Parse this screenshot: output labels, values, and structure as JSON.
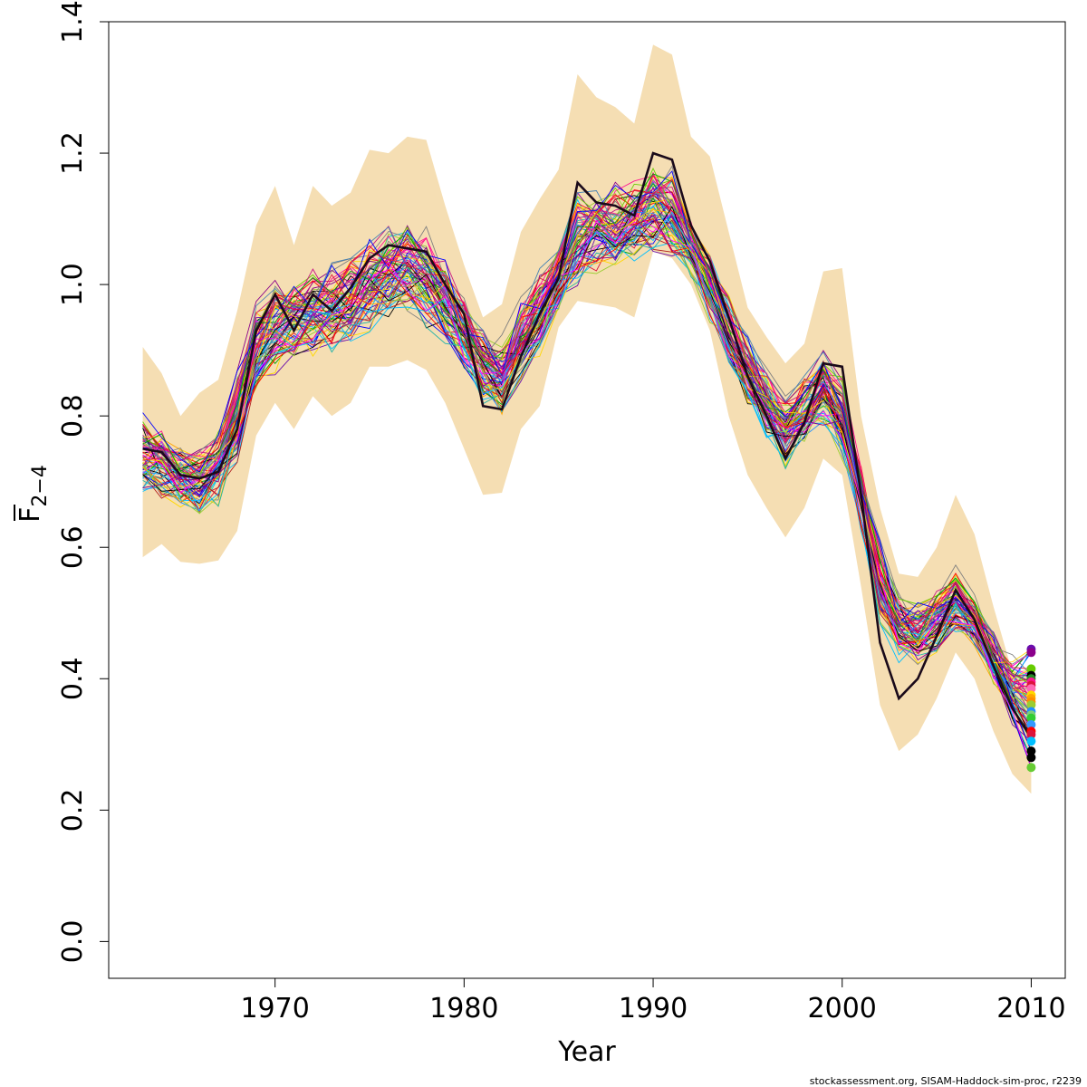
{
  "chart_data": {
    "type": "line",
    "title": "",
    "xlabel": "Year",
    "ylabel": "F",
    "ylabel_subscript": "2−4",
    "xlim": [
      1961.2,
      2011.8
    ],
    "ylim": [
      -0.056,
      1.4
    ],
    "x_ticks": [
      1970,
      1980,
      1990,
      2000,
      2010
    ],
    "y_ticks": [
      0.0,
      0.2,
      0.4,
      0.6,
      0.8,
      1.0,
      1.2,
      1.4
    ],
    "x_tick_labels": [
      "1970",
      "1980",
      "1990",
      "2000",
      "2010"
    ],
    "y_tick_labels": [
      "0.0",
      "0.2",
      "0.4",
      "0.6",
      "0.8",
      "1.0",
      "1.2",
      "1.4"
    ],
    "grid": false,
    "band": {
      "color": "#F5DEB3",
      "x": [
        1963,
        1964,
        1965,
        1966,
        1967,
        1968,
        1969,
        1970,
        1971,
        1972,
        1973,
        1974,
        1975,
        1976,
        1977,
        1978,
        1979,
        1980,
        1981,
        1982,
        1983,
        1984,
        1985,
        1986,
        1987,
        1988,
        1989,
        1990,
        1991,
        1992,
        1993,
        1994,
        1995,
        1996,
        1997,
        1998,
        1999,
        2000,
        2001,
        2002,
        2003,
        2004,
        2005,
        2006,
        2007,
        2008,
        2009,
        2010
      ],
      "lower": [
        0.585,
        0.605,
        0.578,
        0.575,
        0.58,
        0.625,
        0.77,
        0.82,
        0.78,
        0.83,
        0.8,
        0.82,
        0.875,
        0.875,
        0.885,
        0.87,
        0.82,
        0.75,
        0.68,
        0.683,
        0.78,
        0.815,
        0.935,
        0.975,
        0.97,
        0.965,
        0.95,
        1.05,
        1.04,
        1.0,
        0.93,
        0.8,
        0.71,
        0.66,
        0.615,
        0.66,
        0.735,
        0.71,
        0.54,
        0.36,
        0.29,
        0.315,
        0.37,
        0.44,
        0.4,
        0.32,
        0.255,
        0.225
      ],
      "upper": [
        0.905,
        0.865,
        0.8,
        0.835,
        0.855,
        0.96,
        1.09,
        1.15,
        1.06,
        1.15,
        1.12,
        1.14,
        1.205,
        1.2,
        1.225,
        1.22,
        1.12,
        1.03,
        0.95,
        0.97,
        1.08,
        1.13,
        1.175,
        1.32,
        1.285,
        1.27,
        1.245,
        1.365,
        1.35,
        1.225,
        1.195,
        1.08,
        0.965,
        0.92,
        0.88,
        0.91,
        1.02,
        1.025,
        0.8,
        0.66,
        0.56,
        0.555,
        0.6,
        0.68,
        0.62,
        0.51,
        0.41,
        0.415
      ]
    },
    "x": [
      1963,
      1964,
      1965,
      1966,
      1967,
      1968,
      1969,
      1970,
      1971,
      1972,
      1973,
      1974,
      1975,
      1976,
      1977,
      1978,
      1979,
      1980,
      1981,
      1982,
      1983,
      1984,
      1985,
      1986,
      1987,
      1988,
      1989,
      1990,
      1991,
      1992,
      1993,
      1994,
      1995,
      1996,
      1997,
      1998,
      1999,
      2000,
      2001,
      2002,
      2003,
      2004,
      2005,
      2006,
      2007,
      2008,
      2009,
      2010
    ],
    "series": [
      {
        "values": [
          0.75,
          0.745,
          0.71,
          0.705,
          0.715,
          0.78,
          0.93,
          0.985,
          0.93,
          0.985,
          0.96,
          0.995,
          1.04,
          1.06,
          1.055,
          1.05,
          1.0,
          0.955,
          0.815,
          0.81,
          0.89,
          0.955,
          1.01,
          1.155,
          1.125,
          1.12,
          1.105,
          1.2,
          1.19,
          1.09,
          1.035,
          0.95,
          0.86,
          0.8,
          0.735,
          0.79,
          0.88,
          0.875,
          0.68,
          0.455,
          0.37,
          0.4,
          0.465,
          0.535,
          0.49,
          0.42,
          0.355,
          0.31
        ]
      }
    ],
    "replicate_median": [
      0.745,
      0.73,
      0.71,
      0.7,
      0.725,
      0.8,
      0.905,
      0.935,
      0.95,
      0.96,
      0.97,
      0.98,
      1.0,
      1.02,
      1.025,
      1.01,
      0.975,
      0.925,
      0.88,
      0.86,
      0.915,
      0.96,
      1.01,
      1.07,
      1.085,
      1.09,
      1.1,
      1.12,
      1.11,
      1.06,
      1.0,
      0.935,
      0.87,
      0.82,
      0.78,
      0.81,
      0.84,
      0.8,
      0.68,
      0.55,
      0.48,
      0.47,
      0.49,
      0.52,
      0.49,
      0.43,
      0.38,
      0.35
    ],
    "endpoint_values": [
      0.445,
      0.44,
      0.415,
      0.405,
      0.4,
      0.395,
      0.39,
      0.385,
      0.375,
      0.37,
      0.365,
      0.36,
      0.35,
      0.345,
      0.34,
      0.33,
      0.32,
      0.315,
      0.305,
      0.29,
      0.28,
      0.265
    ],
    "endpoint_colors": [
      "#6A0DAD",
      "#8B008B",
      "#66CC00",
      "#000000",
      "#228B22",
      "#FF1493",
      "#DC143C",
      "#FF69B4",
      "#FFD700",
      "#FFA500",
      "#FF8C00",
      "#9ACD32",
      "#1E90FF",
      "#7CCD7C",
      "#32CD32",
      "#3399FF",
      "#FF0000",
      "#DC143C",
      "#00BFFF",
      "#000000",
      "#000000",
      "#66CC33"
    ],
    "palette": [
      "#000000",
      "#FF0000",
      "#00A000",
      "#0000FF",
      "#00BFFF",
      "#FF00FF",
      "#FFD700",
      "#808080",
      "#DC143C",
      "#8B008B",
      "#66CC00",
      "#FF1493",
      "#1E90FF",
      "#FFA500",
      "#9ACD32",
      "#C71585",
      "#4682B4",
      "#B22222",
      "#6A0DAD",
      "#20B2AA"
    ]
  },
  "footer": {
    "text": "stockassessment.org, SISAM-Haddock-sim-proc, r2239"
  }
}
